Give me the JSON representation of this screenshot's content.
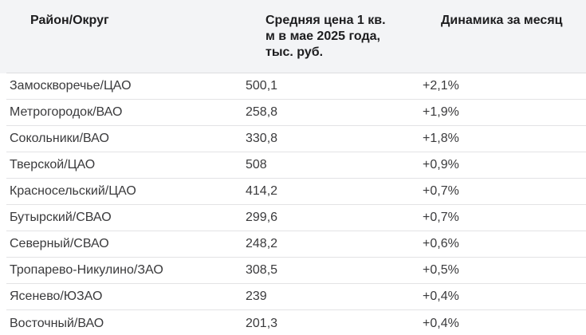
{
  "colors": {
    "header_bg": "#f3f4f6",
    "divider": "#dcdddf",
    "header_text": "#1d1d1f",
    "body_text": "#3a3a3c",
    "page_bg": "#ffffff"
  },
  "table": {
    "columns": [
      {
        "label": "Район/Округ",
        "lines": [
          "Район/Округ"
        ]
      },
      {
        "label": "Средняя цена 1 кв. м в мае 2025 года, тыс. руб.",
        "lines": [
          "Средняя цена 1 кв.",
          "м в мае 2025 года,",
          "тыс. руб."
        ]
      },
      {
        "label": "Динамика за месяц",
        "lines": [
          "Динамика за месяц"
        ]
      }
    ],
    "rows": [
      {
        "district": "Замоскворечье/ЦАО",
        "price": "500,1",
        "change": "+2,1%"
      },
      {
        "district": "Метрогородок/ВАО",
        "price": "258,8",
        "change": "+1,9%"
      },
      {
        "district": "Сокольники/ВАО",
        "price": "330,8",
        "change": "+1,8%"
      },
      {
        "district": "Тверской/ЦАО",
        "price": "508",
        "change": "+0,9%"
      },
      {
        "district": "Красносельский/ЦАО",
        "price": "414,2",
        "change": "+0,7%"
      },
      {
        "district": "Бутырский/СВАО",
        "price": "299,6",
        "change": "+0,7%"
      },
      {
        "district": "Северный/СВАО",
        "price": "248,2",
        "change": "+0,6%"
      },
      {
        "district": "Тропарево-Никулино/ЗАО",
        "price": "308,5",
        "change": "+0,5%"
      },
      {
        "district": "Ясенево/ЮЗАО",
        "price": "239",
        "change": "+0,4%"
      },
      {
        "district": "Восточный/ВАО",
        "price": "201,3",
        "change": "+0,4%"
      }
    ]
  },
  "chart_data": {
    "type": "table",
    "title": "",
    "columns": [
      "Район/Округ",
      "Средняя цена 1 кв. м в мае 2025 года, тыс. руб.",
      "Динамика за месяц"
    ],
    "categories": [
      "Замоскворечье/ЦАО",
      "Метрогородок/ВАО",
      "Сокольники/ВАО",
      "Тверской/ЦАО",
      "Красносельский/ЦАО",
      "Бутырский/СВАО",
      "Северный/СВАО",
      "Тропарево-Никулино/ЗАО",
      "Ясенево/ЮЗАО",
      "Восточный/ВАО"
    ],
    "series": [
      {
        "name": "Средняя цена 1 кв. м в мае 2025 года, тыс. руб.",
        "values": [
          500.1,
          258.8,
          330.8,
          508,
          414.2,
          299.6,
          248.2,
          308.5,
          239,
          201.3
        ]
      },
      {
        "name": "Динамика за месяц, %",
        "values": [
          2.1,
          1.9,
          1.8,
          0.9,
          0.7,
          0.7,
          0.6,
          0.5,
          0.4,
          0.4
        ]
      }
    ],
    "layout": {
      "grid": "horizontal-row-dividers",
      "legend": "none",
      "header_shaded": true
    }
  }
}
